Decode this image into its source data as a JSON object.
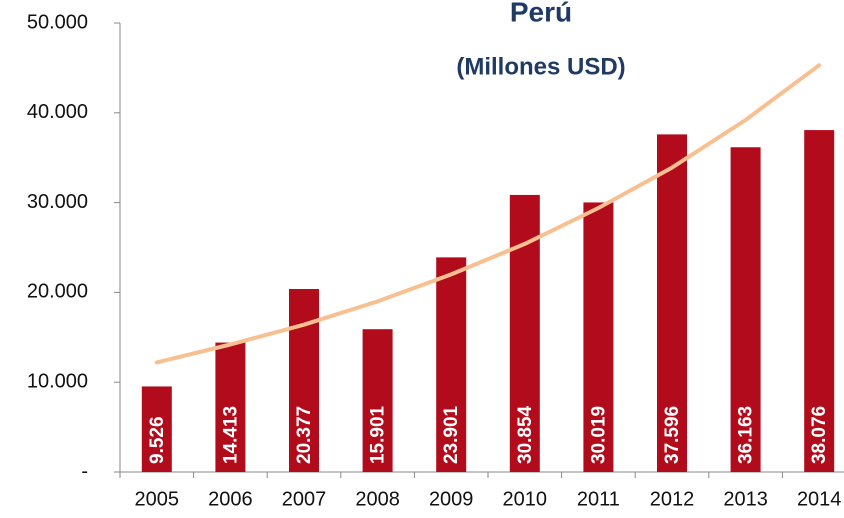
{
  "chart_data": {
    "type": "bar",
    "title": "Perú",
    "subtitle": "(Millones USD)",
    "categories": [
      "2005",
      "2006",
      "2007",
      "2008",
      "2009",
      "2010",
      "2011",
      "2012",
      "2013",
      "2014"
    ],
    "values": [
      9526,
      14413,
      20377,
      15901,
      23901,
      30854,
      30019,
      37596,
      36163,
      38076
    ],
    "value_labels": [
      "9.526",
      "14.413",
      "20.377",
      "15.901",
      "23.901",
      "30.854",
      "30.019",
      "37.596",
      "36.163",
      "38.076"
    ],
    "color": "#b20c1c",
    "trend": {
      "color": "#f8c090",
      "values": [
        12200,
        14200,
        16400,
        19000,
        22000,
        25400,
        29400,
        33900,
        39200,
        45300
      ]
    },
    "ylim": [
      0,
      50000
    ],
    "yticks": [
      {
        "value": 0,
        "label": "-"
      },
      {
        "value": 10000,
        "label": "10.000"
      },
      {
        "value": 20000,
        "label": "20.000"
      },
      {
        "value": 30000,
        "label": "30.000"
      },
      {
        "value": 40000,
        "label": "40.000"
      },
      {
        "value": 50000,
        "label": "50.000"
      }
    ]
  }
}
